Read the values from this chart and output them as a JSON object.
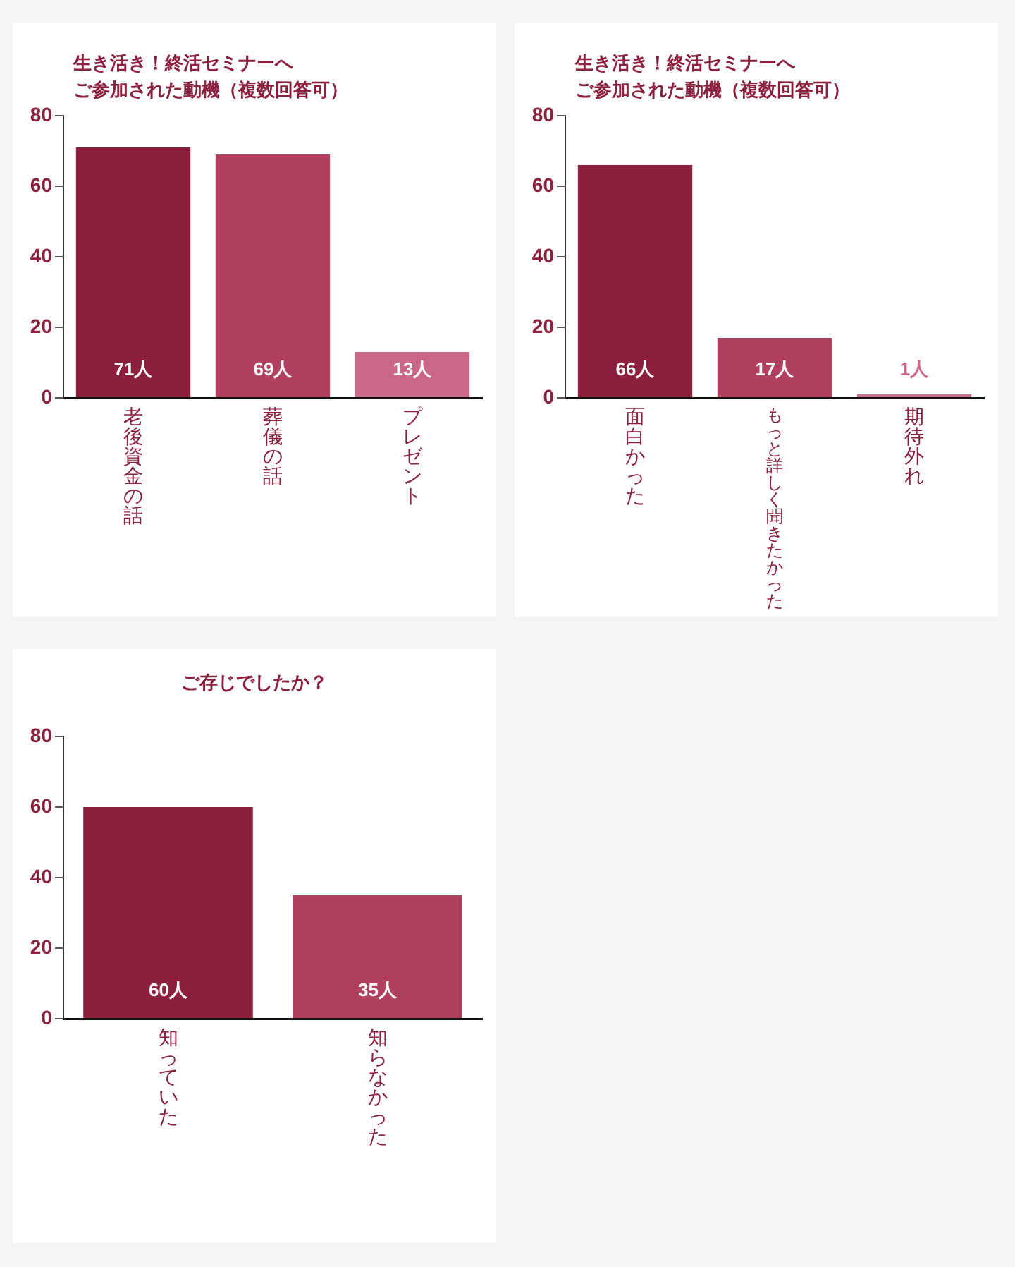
{
  "chart_data": [
    {
      "type": "bar",
      "title": "生き活き！終活セミナーへご参加された動機（複数回答可）",
      "categories": [
        "老後資金の話",
        "葬儀の話",
        "プレゼント"
      ],
      "values": [
        71,
        69,
        13
      ],
      "colors": [
        "#8c1f3c",
        "#b0405e",
        "#cb6688"
      ],
      "value_labels": [
        "71人",
        "69人",
        "13人"
      ],
      "ylim": [
        0,
        80
      ],
      "yticks": [
        0,
        20,
        40,
        60,
        80
      ]
    },
    {
      "type": "bar",
      "title": "生き活き！終活セミナーへご参加された動機（複数回答可）",
      "categories": [
        "面白かった",
        "もっと詳しく聞きたかった",
        "期待外れ"
      ],
      "values": [
        66,
        17,
        1
      ],
      "colors": [
        "#8c1f3c",
        "#b0405e",
        "#cb6688"
      ],
      "value_labels": [
        "66人",
        "17人",
        "1人"
      ],
      "ylim": [
        0,
        80
      ],
      "yticks": [
        0,
        20,
        40,
        60,
        80
      ]
    },
    {
      "type": "bar",
      "title": "ご存じでしたか？",
      "categories": [
        "知っていた",
        "知らなかった"
      ],
      "values": [
        60,
        35
      ],
      "colors": [
        "#8c1f3c",
        "#b0405e"
      ],
      "value_labels": [
        "60人",
        "35人"
      ],
      "ylim": [
        0,
        80
      ],
      "yticks": [
        0,
        20,
        40,
        60,
        80
      ]
    }
  ]
}
